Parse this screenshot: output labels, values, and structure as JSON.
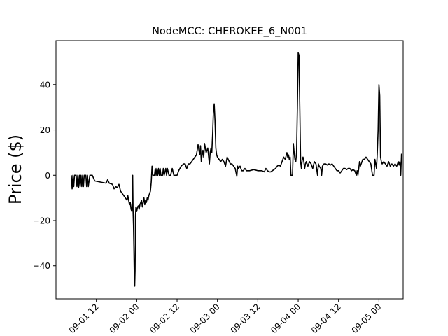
{
  "chart_data": {
    "type": "line",
    "title": "NodeMCC: CHEROKEE_6_N001",
    "xlabel": "",
    "ylabel": "Price ($)",
    "ylim": [
      -54.6,
      59.4
    ],
    "xlim": [
      0,
      4.3
    ],
    "yticks": [
      -40,
      -20,
      0,
      20,
      40
    ],
    "xticks": [
      {
        "value": 0.5,
        "label": "09-01 12"
      },
      {
        "value": 1.0,
        "label": "09-02 00"
      },
      {
        "value": 1.5,
        "label": "09-02 12"
      },
      {
        "value": 2.0,
        "label": "09-03 00"
      },
      {
        "value": 2.5,
        "label": "09-03 12"
      },
      {
        "value": 3.0,
        "label": "09-04 00"
      },
      {
        "value": 3.5,
        "label": "09-04 12"
      },
      {
        "value": 4.0,
        "label": "09-05 00"
      }
    ],
    "x_unit_note": "x = days after 09-01 00",
    "grid": false,
    "colors": {
      "line": "#000000"
    },
    "series": [
      {
        "name": "",
        "points": [
          [
            0.19,
            0
          ],
          [
            0.2,
            -6
          ],
          [
            0.21,
            0
          ],
          [
            0.22,
            -5
          ],
          [
            0.23,
            0
          ],
          [
            0.25,
            0
          ],
          [
            0.26,
            -5
          ],
          [
            0.27,
            0
          ],
          [
            0.28,
            -5.5
          ],
          [
            0.29,
            0
          ],
          [
            0.3,
            -5
          ],
          [
            0.31,
            0
          ],
          [
            0.32,
            -5
          ],
          [
            0.33,
            0
          ],
          [
            0.34,
            -5
          ],
          [
            0.35,
            0
          ],
          [
            0.37,
            0
          ],
          [
            0.38,
            -5
          ],
          [
            0.39,
            0
          ],
          [
            0.4,
            -5
          ],
          [
            0.42,
            0
          ],
          [
            0.45,
            0
          ],
          [
            0.48,
            -2.5
          ],
          [
            0.55,
            -3
          ],
          [
            0.62,
            -3.5
          ],
          [
            0.64,
            -2
          ],
          [
            0.66,
            -3.5
          ],
          [
            0.7,
            -4
          ],
          [
            0.72,
            -6
          ],
          [
            0.74,
            -5
          ],
          [
            0.76,
            -5.5
          ],
          [
            0.78,
            -4
          ],
          [
            0.8,
            -7
          ],
          [
            0.82,
            -8
          ],
          [
            0.84,
            -9
          ],
          [
            0.86,
            -10
          ],
          [
            0.88,
            -11
          ],
          [
            0.89,
            -9
          ],
          [
            0.9,
            -11
          ],
          [
            0.91,
            -13
          ],
          [
            0.92,
            -12
          ],
          [
            0.93,
            -15
          ],
          [
            0.94,
            -16
          ],
          [
            0.945,
            -10
          ],
          [
            0.95,
            0
          ],
          [
            0.955,
            -16
          ],
          [
            0.96,
            -22
          ],
          [
            0.965,
            -32
          ],
          [
            0.97,
            -44
          ],
          [
            0.975,
            -49
          ],
          [
            0.98,
            -42
          ],
          [
            0.985,
            -18
          ],
          [
            0.99,
            -14
          ],
          [
            1.0,
            -16
          ],
          [
            1.01,
            -14
          ],
          [
            1.02,
            -13.5
          ],
          [
            1.03,
            -15
          ],
          [
            1.04,
            -13
          ],
          [
            1.05,
            -12
          ],
          [
            1.06,
            -11
          ],
          [
            1.07,
            -14
          ],
          [
            1.08,
            -12
          ],
          [
            1.09,
            -10
          ],
          [
            1.1,
            -13
          ],
          [
            1.11,
            -11
          ],
          [
            1.12,
            -12
          ],
          [
            1.13,
            -10
          ],
          [
            1.14,
            -11
          ],
          [
            1.15,
            -9
          ],
          [
            1.16,
            -8
          ],
          [
            1.17,
            -7
          ],
          [
            1.18,
            -3
          ],
          [
            1.19,
            4
          ],
          [
            1.2,
            0
          ],
          [
            1.22,
            0
          ],
          [
            1.23,
            3
          ],
          [
            1.24,
            0
          ],
          [
            1.25,
            3
          ],
          [
            1.26,
            0
          ],
          [
            1.27,
            3
          ],
          [
            1.28,
            0
          ],
          [
            1.29,
            3
          ],
          [
            1.3,
            0
          ],
          [
            1.32,
            0
          ],
          [
            1.33,
            3
          ],
          [
            1.34,
            0
          ],
          [
            1.36,
            3
          ],
          [
            1.37,
            0
          ],
          [
            1.38,
            3
          ],
          [
            1.4,
            0
          ],
          [
            1.42,
            0
          ],
          [
            1.44,
            3
          ],
          [
            1.46,
            0
          ],
          [
            1.5,
            0
          ],
          [
            1.52,
            2
          ],
          [
            1.55,
            4
          ],
          [
            1.58,
            5
          ],
          [
            1.6,
            5
          ],
          [
            1.62,
            3
          ],
          [
            1.64,
            5
          ],
          [
            1.66,
            5
          ],
          [
            1.68,
            6
          ],
          [
            1.7,
            7
          ],
          [
            1.72,
            8
          ],
          [
            1.74,
            9
          ],
          [
            1.76,
            13.5
          ],
          [
            1.78,
            9
          ],
          [
            1.79,
            13
          ],
          [
            1.8,
            6
          ],
          [
            1.81,
            9
          ],
          [
            1.82,
            11
          ],
          [
            1.83,
            8
          ],
          [
            1.84,
            14
          ],
          [
            1.86,
            10
          ],
          [
            1.88,
            12
          ],
          [
            1.9,
            5
          ],
          [
            1.91,
            10
          ],
          [
            1.92,
            12
          ],
          [
            1.93,
            10
          ],
          [
            1.94,
            18
          ],
          [
            1.95,
            28
          ],
          [
            1.96,
            31.5
          ],
          [
            1.97,
            24
          ],
          [
            1.98,
            12
          ],
          [
            1.99,
            9
          ],
          [
            2.0,
            8
          ],
          [
            2.02,
            7
          ],
          [
            2.04,
            6
          ],
          [
            2.06,
            7
          ],
          [
            2.08,
            6
          ],
          [
            2.1,
            4
          ],
          [
            2.12,
            8
          ],
          [
            2.14,
            6.5
          ],
          [
            2.16,
            5
          ],
          [
            2.18,
            5
          ],
          [
            2.2,
            4
          ],
          [
            2.22,
            3
          ],
          [
            2.24,
            -0.5
          ],
          [
            2.25,
            4
          ],
          [
            2.26,
            3
          ],
          [
            2.28,
            4
          ],
          [
            2.3,
            2
          ],
          [
            2.32,
            2
          ],
          [
            2.34,
            3
          ],
          [
            2.36,
            2
          ],
          [
            2.4,
            2
          ],
          [
            2.45,
            2.5
          ],
          [
            2.5,
            2
          ],
          [
            2.55,
            2
          ],
          [
            2.58,
            1.5
          ],
          [
            2.6,
            3
          ],
          [
            2.62,
            2
          ],
          [
            2.64,
            1.5
          ],
          [
            2.66,
            1.5
          ],
          [
            2.68,
            2
          ],
          [
            2.7,
            2.5
          ],
          [
            2.72,
            3
          ],
          [
            2.74,
            4
          ],
          [
            2.76,
            4.5
          ],
          [
            2.78,
            4
          ],
          [
            2.8,
            6
          ],
          [
            2.82,
            8
          ],
          [
            2.84,
            7
          ],
          [
            2.86,
            10
          ],
          [
            2.87,
            8
          ],
          [
            2.88,
            9
          ],
          [
            2.89,
            7
          ],
          [
            2.9,
            8
          ],
          [
            2.91,
            0
          ],
          [
            2.93,
            0
          ],
          [
            2.94,
            14
          ],
          [
            2.95,
            10
          ],
          [
            2.96,
            7
          ],
          [
            2.97,
            6
          ],
          [
            2.98,
            10
          ],
          [
            2.99,
            30
          ],
          [
            3.0,
            54
          ],
          [
            3.01,
            53
          ],
          [
            3.02,
            30
          ],
          [
            3.03,
            6
          ],
          [
            3.04,
            3
          ],
          [
            3.05,
            7
          ],
          [
            3.06,
            8
          ],
          [
            3.07,
            6
          ],
          [
            3.08,
            3
          ],
          [
            3.09,
            5
          ],
          [
            3.1,
            6
          ],
          [
            3.12,
            4
          ],
          [
            3.14,
            6
          ],
          [
            3.16,
            5
          ],
          [
            3.18,
            3
          ],
          [
            3.2,
            6
          ],
          [
            3.22,
            5
          ],
          [
            3.24,
            0
          ],
          [
            3.25,
            5
          ],
          [
            3.26,
            4
          ],
          [
            3.28,
            3
          ],
          [
            3.29,
            0
          ],
          [
            3.3,
            4
          ],
          [
            3.32,
            5
          ],
          [
            3.34,
            5
          ],
          [
            3.36,
            4.5
          ],
          [
            3.38,
            5
          ],
          [
            3.4,
            4.5
          ],
          [
            3.42,
            5
          ],
          [
            3.44,
            4
          ],
          [
            3.46,
            3
          ],
          [
            3.48,
            2
          ],
          [
            3.5,
            2
          ],
          [
            3.52,
            1
          ],
          [
            3.54,
            2
          ],
          [
            3.56,
            3
          ],
          [
            3.58,
            3
          ],
          [
            3.6,
            2.5
          ],
          [
            3.62,
            3
          ],
          [
            3.64,
            3
          ],
          [
            3.66,
            2
          ],
          [
            3.68,
            2.5
          ],
          [
            3.7,
            2
          ],
          [
            3.72,
            0
          ],
          [
            3.73,
            2
          ],
          [
            3.74,
            0
          ],
          [
            3.76,
            6
          ],
          [
            3.77,
            4
          ],
          [
            3.78,
            5
          ],
          [
            3.8,
            7
          ],
          [
            3.82,
            7
          ],
          [
            3.84,
            8
          ],
          [
            3.86,
            7
          ],
          [
            3.88,
            6
          ],
          [
            3.9,
            5
          ],
          [
            3.92,
            0
          ],
          [
            3.94,
            0
          ],
          [
            3.95,
            7
          ],
          [
            3.96,
            5
          ],
          [
            3.97,
            3
          ],
          [
            3.98,
            10
          ],
          [
            3.99,
            20
          ],
          [
            4.0,
            40
          ],
          [
            4.01,
            35
          ],
          [
            4.02,
            8
          ],
          [
            4.03,
            6
          ],
          [
            4.04,
            5
          ],
          [
            4.06,
            6
          ],
          [
            4.08,
            5
          ],
          [
            4.1,
            4
          ],
          [
            4.12,
            6
          ],
          [
            4.14,
            4
          ],
          [
            4.16,
            5
          ],
          [
            4.18,
            4
          ],
          [
            4.2,
            5
          ],
          [
            4.22,
            4
          ],
          [
            4.24,
            6
          ],
          [
            4.25,
            4.5
          ],
          [
            4.26,
            6
          ],
          [
            4.27,
            0
          ],
          [
            4.28,
            9.5
          ]
        ]
      }
    ]
  }
}
